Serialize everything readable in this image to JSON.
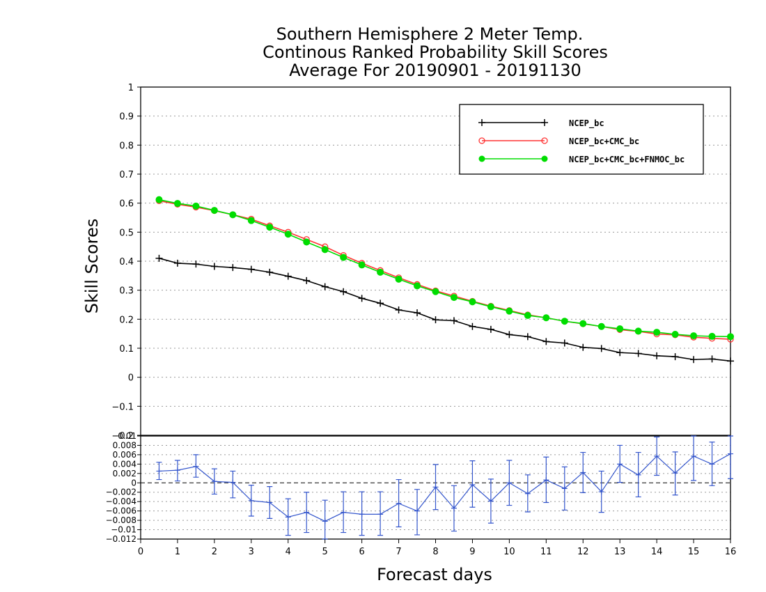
{
  "chart_data": [
    {
      "type": "line",
      "title": [
        "Southern Hemisphere 2 Meter Temp.",
        "Continous Ranked Probability Skill Scores",
        "Average For 20190901 - 20191130"
      ],
      "xlabel": "Forecast days",
      "ylabel": "Skill Scores",
      "xlim": [
        0,
        16
      ],
      "ylim": [
        -0.2,
        1
      ],
      "xticks": [
        "0",
        "1",
        "2",
        "3",
        "4",
        "5",
        "6",
        "7",
        "8",
        "9",
        "10",
        "11",
        "12",
        "13",
        "14",
        "15",
        "16"
      ],
      "yticks": [
        "-0.2",
        "-0.1",
        "0",
        "0.1",
        "0.2",
        "0.3",
        "0.4",
        "0.5",
        "0.6",
        "0.7",
        "0.8",
        "0.9",
        "1"
      ],
      "grid": "dotted horizontal",
      "legend_position": "top-right",
      "x": [
        0.5,
        1,
        1.5,
        2,
        2.5,
        3,
        3.5,
        4,
        4.5,
        5,
        5.5,
        6,
        6.5,
        7,
        7.5,
        8,
        8.5,
        9,
        9.5,
        10,
        10.5,
        11,
        11.5,
        12,
        12.5,
        13,
        13.5,
        14,
        14.5,
        15,
        15.5,
        16
      ],
      "series": [
        {
          "name": "NCEP_bc",
          "color": "#000000",
          "marker": "plus",
          "values": [
            0.41,
            0.393,
            0.39,
            0.382,
            0.378,
            0.372,
            0.362,
            0.348,
            0.333,
            0.312,
            0.295,
            0.272,
            0.255,
            0.232,
            0.222,
            0.198,
            0.195,
            0.175,
            0.165,
            0.147,
            0.14,
            0.123,
            0.118,
            0.103,
            0.099,
            0.085,
            0.082,
            0.074,
            0.071,
            0.061,
            0.063,
            0.056
          ]
        },
        {
          "name": "NCEP_bc+CMC_bc",
          "color": "#ff3333",
          "marker": "open-circle",
          "values": [
            0.608,
            0.596,
            0.586,
            0.574,
            0.56,
            0.545,
            0.522,
            0.5,
            0.475,
            0.45,
            0.42,
            0.393,
            0.368,
            0.343,
            0.32,
            0.298,
            0.28,
            0.262,
            0.245,
            0.23,
            0.215,
            0.205,
            0.193,
            0.184,
            0.175,
            0.164,
            0.158,
            0.149,
            0.146,
            0.138,
            0.134,
            0.131
          ]
        },
        {
          "name": "NCEP_bc+CMC_bc+FNMOC_bc",
          "color": "#00dd00",
          "marker": "filled-circle",
          "values": [
            0.612,
            0.599,
            0.59,
            0.575,
            0.56,
            0.54,
            0.517,
            0.493,
            0.466,
            0.44,
            0.413,
            0.387,
            0.362,
            0.338,
            0.315,
            0.295,
            0.275,
            0.26,
            0.243,
            0.228,
            0.213,
            0.205,
            0.193,
            0.185,
            0.175,
            0.167,
            0.159,
            0.155,
            0.148,
            0.143,
            0.141,
            0.14
          ]
        }
      ]
    },
    {
      "type": "line",
      "xlim": [
        0,
        16
      ],
      "ylim": [
        -0.012,
        0.01
      ],
      "yticks": [
        "-0.012",
        "-0.01",
        "-0.008",
        "-0.006",
        "-0.004",
        "-0.002",
        "0",
        "0.002",
        "0.004",
        "0.006",
        "0.008",
        "0.01"
      ],
      "zero_line": "dashed",
      "grid": "dotted horizontal",
      "color": "#3355cc",
      "x": [
        0.5,
        1,
        1.5,
        2,
        2.5,
        3,
        3.5,
        4,
        4.5,
        5,
        5.5,
        6,
        6.5,
        7,
        7.5,
        8,
        8.5,
        9,
        9.5,
        10,
        10.5,
        11,
        11.5,
        12,
        12.5,
        13,
        13.5,
        14,
        14.5,
        15,
        15.5,
        16
      ],
      "values": [
        0.0025,
        0.0027,
        0.0035,
        0.0003,
        0.0001,
        -0.0038,
        -0.0042,
        -0.0073,
        -0.0063,
        -0.0082,
        -0.0063,
        -0.0067,
        -0.0067,
        -0.0044,
        -0.006,
        -0.0009,
        -0.0054,
        -0.0004,
        -0.0039,
        0.0,
        -0.0023,
        0.0006,
        -0.0012,
        0.0022,
        -0.0019,
        0.004,
        0.0017,
        0.0057,
        0.0021,
        0.0057,
        0.004,
        0.0062
      ],
      "err_low": [
        0.0007,
        0.0004,
        0.0012,
        -0.0024,
        -0.0032,
        -0.0071,
        -0.0076,
        -0.0112,
        -0.0106,
        -0.0124,
        -0.0106,
        -0.0112,
        -0.0112,
        -0.0094,
        -0.0111,
        -0.0057,
        -0.0103,
        -0.0052,
        -0.0086,
        -0.0048,
        -0.0062,
        -0.0042,
        -0.0058,
        -0.0021,
        -0.0063,
        0.0001,
        -0.003,
        0.0016,
        -0.0026,
        0.0005,
        -0.0006,
        0.0009
      ],
      "err_high": [
        0.0044,
        0.0048,
        0.006,
        0.003,
        0.0025,
        -0.0005,
        -0.0008,
        -0.0034,
        -0.002,
        -0.0037,
        -0.0019,
        -0.0019,
        -0.0019,
        0.0007,
        -0.0014,
        0.0039,
        -0.0006,
        0.0047,
        0.0008,
        0.0048,
        0.0017,
        0.0055,
        0.0034,
        0.0065,
        0.0025,
        0.008,
        0.0065,
        0.0098,
        0.0066,
        0.0109,
        0.0087,
        0.0107
      ]
    }
  ]
}
